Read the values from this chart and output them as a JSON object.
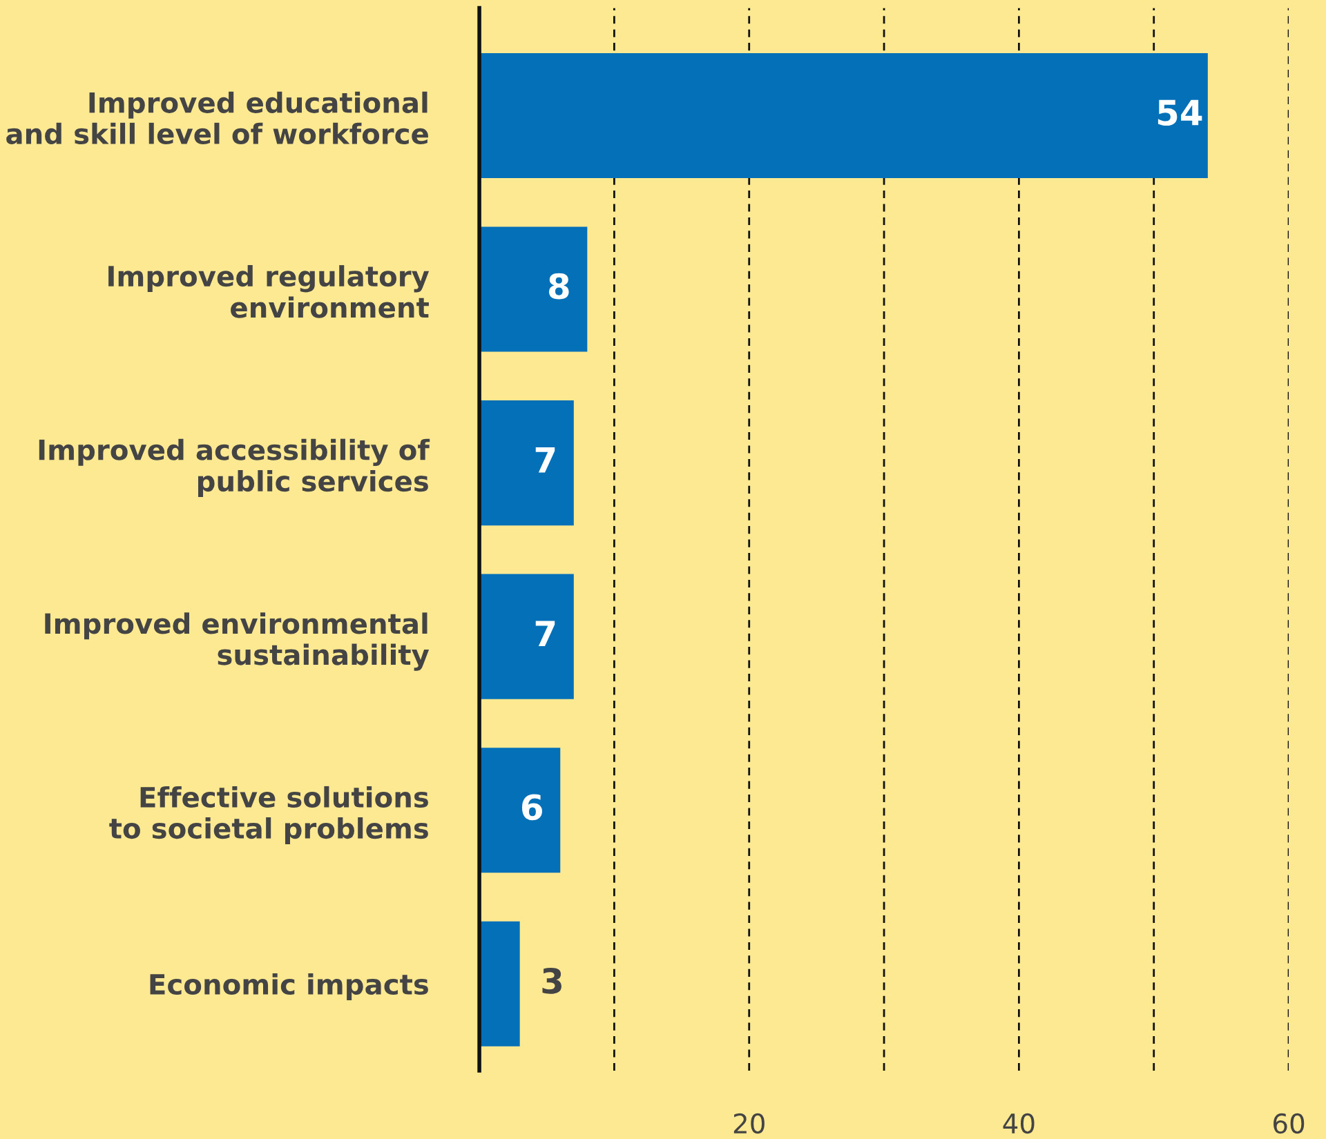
{
  "chart_data": {
    "type": "bar",
    "orientation": "horizontal",
    "categories": [
      "Improved educational\nand skill level of workforce",
      "Improved regulatory\nenvironment",
      "Improved accessibility of\npublic services",
      "Improved environmental\nsustainability",
      "Effective solutions\nto societal problems",
      "Economic impacts"
    ],
    "values": [
      54,
      8,
      7,
      7,
      6,
      3
    ],
    "color": "#0470b8",
    "xlim": [
      0,
      60
    ],
    "xticks": [
      {
        "value": 10,
        "label": null
      },
      20,
      {
        "value": 30,
        "label": null
      },
      40,
      {
        "value": 50,
        "label": null
      },
      60
    ],
    "grid": "x",
    "line_style": "dashed",
    "data_labels": true
  }
}
